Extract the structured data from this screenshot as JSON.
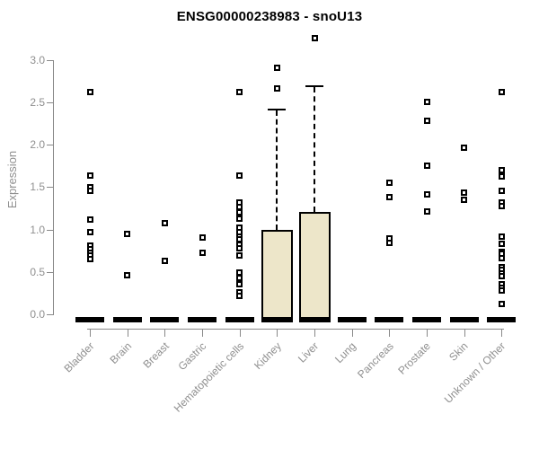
{
  "chart_data": {
    "type": "boxplot",
    "title": "ENSG00000238983 - snoU13",
    "ylabel": "Expression",
    "ylim": [
      0,
      3.3
    ],
    "yticks": [
      "0.0",
      "0.5",
      "1.0",
      "1.5",
      "2.0",
      "2.5",
      "3.0"
    ],
    "grid": false,
    "legend": "none",
    "categories": [
      "Bladder",
      "Brain",
      "Breast",
      "Gastric",
      "Hematopoietic cells",
      "Kidney",
      "Liver",
      "Lung",
      "Pancreas",
      "Prostate",
      "Skin",
      "Unknown / Other"
    ],
    "series": [
      {
        "name": "Bladder",
        "q1": 0,
        "median": 0,
        "q3": 0,
        "whisker_low": 0,
        "whisker_high": 0,
        "outliers": [
          2.62,
          1.63,
          1.5,
          1.45,
          1.12,
          0.97,
          0.81,
          0.77,
          0.73,
          0.69,
          0.65
        ]
      },
      {
        "name": "Brain",
        "q1": 0,
        "median": 0,
        "q3": 0,
        "whisker_low": 0,
        "whisker_high": 0,
        "outliers": [
          0.95,
          0.46
        ]
      },
      {
        "name": "Breast",
        "q1": 0,
        "median": 0,
        "q3": 0,
        "whisker_low": 0,
        "whisker_high": 0,
        "outliers": [
          1.07,
          0.63
        ]
      },
      {
        "name": "Gastric",
        "q1": 0,
        "median": 0,
        "q3": 0,
        "whisker_low": 0,
        "whisker_high": 0,
        "outliers": [
          0.9,
          0.72
        ]
      },
      {
        "name": "Hematopoietic cells",
        "q1": 0,
        "median": 0,
        "q3": 0,
        "whisker_low": 0,
        "whisker_high": 0,
        "outliers": [
          2.62,
          1.64,
          1.32,
          1.26,
          1.2,
          1.13,
          1.02,
          0.97,
          0.92,
          0.88,
          0.82,
          0.78,
          0.69,
          0.49,
          0.43,
          0.35,
          0.26,
          0.22
        ]
      },
      {
        "name": "Kidney",
        "q1": 0,
        "median": 0,
        "q3": 1.0,
        "whisker_low": 0,
        "whisker_high": 2.42,
        "outliers": [
          2.91,
          2.66
        ]
      },
      {
        "name": "Liver",
        "q1": 0,
        "median": 0,
        "q3": 1.21,
        "whisker_low": 0,
        "whisker_high": 2.7,
        "outliers": [
          3.25
        ]
      },
      {
        "name": "Lung",
        "q1": 0,
        "median": 0,
        "q3": 0,
        "whisker_low": 0,
        "whisker_high": 0,
        "outliers": []
      },
      {
        "name": "Pancreas",
        "q1": 0,
        "median": 0,
        "q3": 0,
        "whisker_low": 0,
        "whisker_high": 0,
        "outliers": [
          1.55,
          1.38,
          0.89,
          0.84
        ]
      },
      {
        "name": "Prostate",
        "q1": 0,
        "median": 0,
        "q3": 0,
        "whisker_low": 0,
        "whisker_high": 0,
        "outliers": [
          2.5,
          2.28,
          1.75,
          1.41,
          1.21
        ]
      },
      {
        "name": "Skin",
        "q1": 0,
        "median": 0,
        "q3": 0,
        "whisker_low": 0,
        "whisker_high": 0,
        "outliers": [
          1.96,
          1.43,
          1.35
        ]
      },
      {
        "name": "Unknown / Other",
        "q1": 0,
        "median": 0,
        "q3": 0,
        "whisker_low": 0,
        "whisker_high": 0,
        "outliers": [
          2.62,
          1.7,
          1.62,
          1.46,
          1.32,
          1.28,
          0.92,
          0.83,
          0.74,
          0.71,
          0.66,
          0.56,
          0.52,
          0.48,
          0.45,
          0.35,
          0.31,
          0.28,
          0.12
        ]
      }
    ],
    "colors": {
      "box_fill": "#EDE6C9",
      "box_border": "#000000",
      "axis": "#898989",
      "tick_text": "#8f8f8f",
      "title_text": "#000000",
      "background": "#ffffff"
    }
  }
}
